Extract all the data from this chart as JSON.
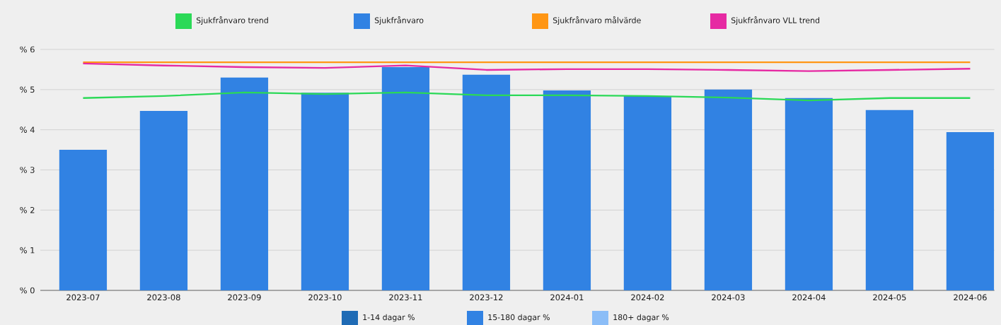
{
  "chart_data": {
    "type": "bar",
    "categories": [
      "2023-07",
      "2023-08",
      "2023-09",
      "2023-10",
      "2023-11",
      "2023-12",
      "2024-01",
      "2024-02",
      "2024-03",
      "2024-04",
      "2024-05",
      "2024-06"
    ],
    "series": [
      {
        "name": "Sjukfrånvaro trend",
        "type": "line",
        "color": "#2bd957",
        "values": [
          4.79,
          4.84,
          4.93,
          4.89,
          4.93,
          4.86,
          4.86,
          4.84,
          4.8,
          4.73,
          4.79,
          4.79
        ]
      },
      {
        "name": "Sjukfrånvaro",
        "color": "#3182e3",
        "values": [
          3.5,
          4.47,
          5.3,
          4.92,
          5.56,
          5.37,
          4.98,
          4.84,
          5.0,
          4.79,
          4.49,
          3.94
        ]
      },
      {
        "name": "Sjukfrånvaro målvärde",
        "type": "line",
        "color": "#ff9614",
        "values": [
          5.68,
          5.68,
          5.68,
          5.68,
          5.68,
          5.68,
          5.68,
          5.68,
          5.68,
          5.68,
          5.68,
          5.68
        ]
      },
      {
        "name": "Sjukfrånvaro VLL trend",
        "type": "line",
        "color": "#e62aa3",
        "values": [
          5.65,
          5.6,
          5.56,
          5.54,
          5.6,
          5.49,
          5.51,
          5.51,
          5.49,
          5.46,
          5.49,
          5.52
        ]
      },
      {
        "name": "1-14 dagar %",
        "color": "#1f6bb5",
        "values": [
          null,
          null,
          null,
          null,
          null,
          null,
          null,
          null,
          null,
          null,
          null,
          null
        ]
      },
      {
        "name": "15-180 dagar %",
        "color": "#3182e3",
        "values": [
          null,
          null,
          null,
          null,
          null,
          null,
          null,
          null,
          null,
          null,
          null,
          null
        ]
      },
      {
        "name": "180+ dagar %",
        "color": "#8bbdf7",
        "values": [
          null,
          null,
          null,
          null,
          null,
          null,
          null,
          null,
          null,
          null,
          null,
          null
        ]
      }
    ],
    "ylim": [
      0,
      6
    ],
    "yticks": [
      {
        "value": 0,
        "label": "% 0"
      },
      {
        "value": 1,
        "label": "% 1"
      },
      {
        "value": 2,
        "label": "% 2"
      },
      {
        "value": 3,
        "label": "% 3"
      },
      {
        "value": 4,
        "label": "% 4"
      },
      {
        "value": 5,
        "label": "% 5"
      },
      {
        "value": 6,
        "label": "% 6"
      }
    ],
    "grid": "y",
    "legend": "top",
    "marker": "none",
    "line_style": "solid"
  }
}
